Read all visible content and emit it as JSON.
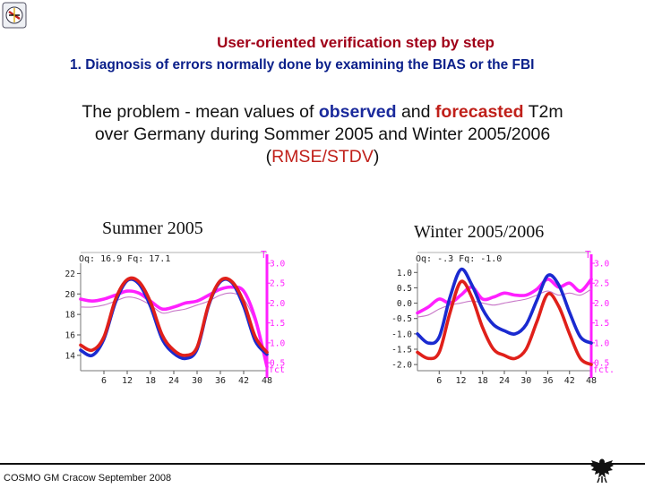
{
  "header": {
    "title": "User-oriented verification step by step",
    "subtitle": "1. Diagnosis of errors normally done by examining the BIAS or the FBI"
  },
  "problem": {
    "line1_a": "The problem - mean values of ",
    "obs_word": "observed",
    "line1_b": " and ",
    "fc_word": "forecasted",
    "line1_c": " T2m",
    "line2": "over Germany during Sommer 2005 and Winter  2005/2006",
    "line3_open": "(",
    "line3_rmse": "RMSE/STDV",
    "line3_close": ")"
  },
  "footer": {
    "text": "COSMO GM Cracow September 2008"
  },
  "colors": {
    "observed": "#1a2ad0",
    "forecast": "#e0201a",
    "rmse": "#ff20ff",
    "stdv": "#c878c8",
    "title_red": "#a00018",
    "title_blue": "#0a1f8a"
  },
  "chart_data": [
    {
      "type": "line",
      "title": "Summer 2005",
      "header_text": "Oq:  16.9 Fq:  17.1",
      "right_axis_label_top": "T",
      "right_axis_label_bottom": "fct",
      "x": [
        0,
        3,
        6,
        9,
        12,
        15,
        18,
        21,
        24,
        27,
        30,
        33,
        36,
        39,
        42,
        45,
        48
      ],
      "xticks": [
        6,
        12,
        18,
        24,
        30,
        36,
        42,
        48
      ],
      "xlim": [
        0,
        48
      ],
      "ylim": [
        12.5,
        23
      ],
      "yticks": [
        14,
        16,
        18,
        20,
        22
      ],
      "right_ticks": [
        "0.5",
        "1.0",
        "1.5",
        "2.0",
        "2.5",
        "3.0"
      ],
      "right_lim": [
        0.3,
        3.0
      ],
      "series": [
        {
          "role": "observed",
          "axis": "left",
          "values": [
            14.5,
            14.0,
            15.6,
            19.2,
            21.3,
            21.0,
            18.8,
            15.6,
            14.2,
            13.7,
            14.6,
            18.9,
            21.2,
            21.1,
            18.8,
            15.4,
            14.1
          ]
        },
        {
          "role": "forecast",
          "axis": "left",
          "values": [
            15.0,
            14.5,
            15.8,
            19.5,
            21.4,
            21.2,
            19.2,
            16.0,
            14.5,
            14.0,
            14.8,
            19.0,
            21.3,
            21.2,
            19.2,
            15.8,
            14.3
          ]
        },
        {
          "role": "rmse",
          "axis": "right",
          "values": [
            2.1,
            2.05,
            2.1,
            2.2,
            2.3,
            2.25,
            2.05,
            1.85,
            1.9,
            2.0,
            2.05,
            2.2,
            2.35,
            2.4,
            2.3,
            1.6,
            0.4
          ]
        },
        {
          "role": "stdv",
          "axis": "right",
          "values": [
            1.9,
            1.9,
            1.95,
            2.05,
            2.15,
            2.1,
            1.95,
            1.75,
            1.8,
            1.85,
            1.95,
            2.05,
            2.2,
            2.25,
            2.1,
            1.5,
            0.35
          ]
        }
      ]
    },
    {
      "type": "line",
      "title": "Winter 2005/2006",
      "header_text": "Oq:  -.3 Fq:  -1.0",
      "right_axis_label_top": "T",
      "right_axis_label_bottom": "fct.",
      "x": [
        0,
        3,
        6,
        9,
        12,
        15,
        18,
        21,
        24,
        27,
        30,
        33,
        36,
        39,
        42,
        45,
        48
      ],
      "xticks": [
        6,
        12,
        18,
        24,
        30,
        36,
        42,
        48
      ],
      "xlim": [
        0,
        48
      ],
      "ylim": [
        -2.2,
        1.3
      ],
      "yticks": [
        1.0,
        0.5,
        0.0,
        -0.5,
        -1.0,
        -1.5,
        -2.0
      ],
      "ytick_labels": [
        "1.0",
        "0.5",
        "0.0",
        "-0.5",
        "-1.0",
        "-1.5",
        "-2.0"
      ],
      "right_ticks": [
        "0.5",
        "1.0",
        "1.5",
        "2.0",
        "2.5",
        "3.0"
      ],
      "right_lim": [
        0.3,
        3.0
      ],
      "series": [
        {
          "role": "observed",
          "axis": "left",
          "values": [
            -1.0,
            -1.3,
            -1.1,
            0.2,
            1.1,
            0.6,
            -0.2,
            -0.7,
            -0.9,
            -1.0,
            -0.7,
            0.1,
            0.9,
            0.6,
            -0.3,
            -1.1,
            -1.3
          ]
        },
        {
          "role": "forecast",
          "axis": "left",
          "values": [
            -1.6,
            -1.8,
            -1.6,
            -0.3,
            0.7,
            0.2,
            -0.8,
            -1.5,
            -1.7,
            -1.8,
            -1.5,
            -0.6,
            0.3,
            -0.1,
            -1.0,
            -1.8,
            -2.0
          ]
        },
        {
          "role": "rmse",
          "axis": "right",
          "values": [
            1.75,
            1.9,
            2.1,
            2.0,
            2.2,
            2.4,
            2.1,
            2.15,
            2.25,
            2.2,
            2.2,
            2.35,
            2.6,
            2.4,
            2.5,
            2.3,
            2.6
          ]
        },
        {
          "role": "stdv",
          "axis": "right",
          "values": [
            1.65,
            1.7,
            1.85,
            1.95,
            2.0,
            2.05,
            2.0,
            1.95,
            2.0,
            2.05,
            2.1,
            2.2,
            2.3,
            2.2,
            2.25,
            2.2,
            2.35
          ]
        }
      ]
    }
  ]
}
